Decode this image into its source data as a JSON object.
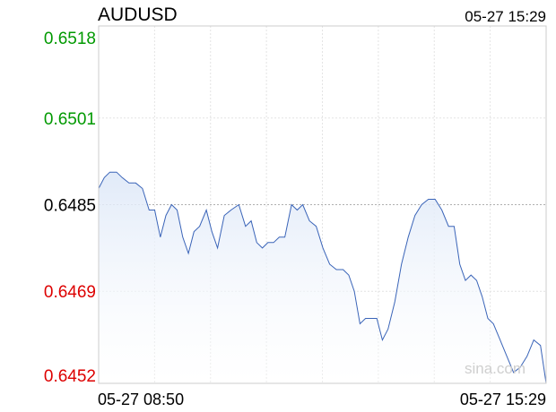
{
  "header": {
    "symbol": "AUDUSD",
    "timestamp": "05-27 15:29"
  },
  "watermark": "sina.com",
  "colors": {
    "up": "#009900",
    "down": "#dd0000",
    "neutral": "#000000",
    "line": "#3a64b8",
    "fill_top": "#e3ecfa",
    "grid": "#e2e2e2"
  },
  "chart_data": {
    "type": "area",
    "title": "AUDUSD",
    "reference": 0.6485,
    "ylim": [
      0.6452,
      0.6518
    ],
    "y_ticks": [
      {
        "label": "0.6518",
        "value": 0.6518,
        "tone": "up"
      },
      {
        "label": "0.6501",
        "value": 0.6501,
        "tone": "up"
      },
      {
        "label": "0.6485",
        "value": 0.6485,
        "tone": "neutral"
      },
      {
        "label": "0.6469",
        "value": 0.6469,
        "tone": "down"
      },
      {
        "label": "0.6452",
        "value": 0.6452,
        "tone": "down"
      }
    ],
    "x_ticks": [
      {
        "label": "05-27 08:50"
      },
      {
        "label": "05-27 15:29"
      }
    ],
    "x_range": [
      0,
      399
    ],
    "grid": true,
    "series": [
      {
        "x": [
          0,
          5,
          10,
          16,
          21,
          27,
          33,
          39,
          45,
          50,
          55,
          60,
          65,
          70,
          75,
          80,
          85,
          90,
          96,
          101,
          106,
          112,
          118,
          125,
          131,
          136,
          141,
          146,
          151,
          156,
          161,
          166,
          172,
          177,
          182,
          188,
          194,
          200,
          206,
          212,
          218,
          223,
          228,
          233,
          238,
          243,
          248,
          253,
          258,
          264,
          270,
          276,
          282,
          288,
          294,
          300,
          306,
          312,
          317,
          322,
          327,
          332,
          337,
          342,
          347,
          352,
          358,
          364,
          370,
          376,
          382,
          388,
          394,
          399
        ],
        "values": [
          0.6488,
          0.649,
          0.6491,
          0.6491,
          0.649,
          0.6489,
          0.6489,
          0.6488,
          0.6484,
          0.6484,
          0.6479,
          0.6483,
          0.6485,
          0.6484,
          0.6479,
          0.6476,
          0.648,
          0.6481,
          0.6484,
          0.648,
          0.6477,
          0.6483,
          0.6484,
          0.6485,
          0.6481,
          0.6482,
          0.6478,
          0.6477,
          0.6478,
          0.6478,
          0.6479,
          0.6479,
          0.6485,
          0.6484,
          0.6485,
          0.6482,
          0.6481,
          0.6477,
          0.6474,
          0.6473,
          0.6473,
          0.6472,
          0.6469,
          0.6463,
          0.6464,
          0.6464,
          0.6464,
          0.646,
          0.6462,
          0.6467,
          0.6474,
          0.6479,
          0.6483,
          0.6485,
          0.6486,
          0.6486,
          0.6484,
          0.6481,
          0.6481,
          0.6474,
          0.6471,
          0.6472,
          0.6471,
          0.6468,
          0.6464,
          0.6463,
          0.646,
          0.6457,
          0.6454,
          0.6455,
          0.6457,
          0.646,
          0.6459,
          0.6452
        ]
      }
    ]
  }
}
